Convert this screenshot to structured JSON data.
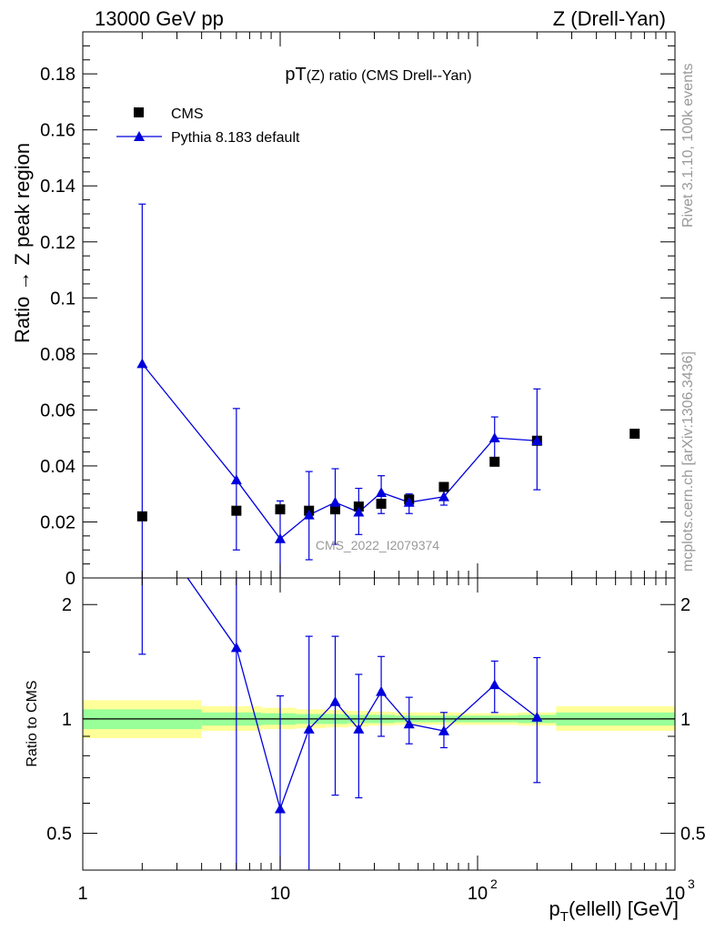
{
  "header": {
    "left": "13000 GeV pp",
    "right": "Z (Drell-Yan)"
  },
  "side_notes": {
    "rivet": "Rivet 3.1.10,  100k events",
    "mcplots": "mcplots.cern.ch [arXiv:1306.3436]"
  },
  "watermark": "CMS_2022_I2079374",
  "colors": {
    "data": "#000000",
    "mc": "#0000dd",
    "band_inner": "#99ff99",
    "band_outer": "#ffff99"
  },
  "chart_data": [
    {
      "type": "scatter",
      "title": "pT(Z) ratio (CMS Drell--Yan)",
      "title_main": "pT",
      "title_rest": "(Z) ratio (CMS Drell--Yan)",
      "xlabel": "p_T(ellell) [GeV]",
      "xlabel_main": "p",
      "xlabel_sub": "T",
      "xlabel_rest": "(ellell) [GeV]",
      "ylabel": "Ratio → Z peak region",
      "xscale": "log",
      "xlim": [
        1,
        1000
      ],
      "ylim": [
        0,
        0.195
      ],
      "yticks": [
        0,
        0.02,
        0.04,
        0.06,
        0.08,
        0.1,
        0.12,
        0.14,
        0.16,
        0.18
      ],
      "ytick_labels": [
        "0",
        "0.02",
        "0.04",
        "0.06",
        "0.08",
        "0.1",
        "0.12",
        "0.14",
        "0.16",
        "0.18"
      ],
      "legend_position": "top-left",
      "legend": [
        "CMS",
        "Pythia 8.183 default"
      ],
      "series": [
        {
          "name": "CMS",
          "marker": "square",
          "x": [
            2,
            6,
            10,
            14,
            19,
            25,
            32.5,
            45,
            67.5,
            122,
            200,
            625
          ],
          "y": [
            0.022,
            0.024,
            0.0245,
            0.024,
            0.0245,
            0.0255,
            0.0265,
            0.028,
            0.0325,
            0.0415,
            0.049,
            0.0515
          ]
        },
        {
          "name": "Pythia 8.183 default",
          "marker": "triangle",
          "x": [
            2,
            6,
            10,
            14,
            19,
            25,
            32.5,
            45,
            67.5,
            122,
            200
          ],
          "y": [
            0.0765,
            0.035,
            0.014,
            0.0225,
            0.027,
            0.0235,
            0.0305,
            0.027,
            0.029,
            0.05,
            0.049
          ],
          "err_low": [
            0.0765,
            0.025,
            0.014,
            0.016,
            0.015,
            0.008,
            0.0075,
            0.004,
            0.003,
            0.0075,
            0.0175
          ],
          "err_high": [
            0.057,
            0.0255,
            0.0135,
            0.0155,
            0.012,
            0.0085,
            0.006,
            0.003,
            0.003,
            0.0075,
            0.0185
          ]
        }
      ]
    },
    {
      "type": "line",
      "title": "",
      "xlabel": "p_T(ellell) [GeV]",
      "ylabel": "Ratio to CMS",
      "xscale": "log",
      "yscale": "log",
      "xlim": [
        1,
        1000
      ],
      "ylim": [
        0.4,
        2.35
      ],
      "yticks": [
        0.5,
        1,
        2
      ],
      "ytick_labels": [
        "0.5",
        "1",
        "2"
      ],
      "xtick_labels": [
        "1",
        "10",
        "10",
        "10"
      ],
      "xtick_exponents": [
        "",
        "",
        "2",
        "3"
      ],
      "reference_line": 1,
      "bands": [
        {
          "x_low": 1,
          "x_high": 4,
          "inner": [
            0.94,
            1.06
          ],
          "outer": [
            0.89,
            1.12
          ]
        },
        {
          "x_low": 4,
          "x_high": 8,
          "inner": [
            0.96,
            1.04
          ],
          "outer": [
            0.93,
            1.08
          ]
        },
        {
          "x_low": 8,
          "x_high": 12,
          "inner": [
            0.965,
            1.035
          ],
          "outer": [
            0.94,
            1.07
          ]
        },
        {
          "x_low": 12,
          "x_high": 17,
          "inner": [
            0.97,
            1.03
          ],
          "outer": [
            0.945,
            1.06
          ]
        },
        {
          "x_low": 17,
          "x_high": 22,
          "inner": [
            0.97,
            1.03
          ],
          "outer": [
            0.95,
            1.055
          ]
        },
        {
          "x_low": 22,
          "x_high": 28,
          "inner": [
            0.975,
            1.025
          ],
          "outer": [
            0.955,
            1.05
          ]
        },
        {
          "x_low": 28,
          "x_high": 38,
          "inner": [
            0.975,
            1.025
          ],
          "outer": [
            0.96,
            1.045
          ]
        },
        {
          "x_low": 38,
          "x_high": 55,
          "inner": [
            0.98,
            1.02
          ],
          "outer": [
            0.965,
            1.04
          ]
        },
        {
          "x_low": 55,
          "x_high": 85,
          "inner": [
            0.98,
            1.02
          ],
          "outer": [
            0.965,
            1.04
          ]
        },
        {
          "x_low": 85,
          "x_high": 160,
          "inner": [
            0.98,
            1.02
          ],
          "outer": [
            0.965,
            1.035
          ]
        },
        {
          "x_low": 160,
          "x_high": 250,
          "inner": [
            0.975,
            1.025
          ],
          "outer": [
            0.96,
            1.04
          ]
        },
        {
          "x_low": 250,
          "x_high": 1000,
          "inner": [
            0.96,
            1.04
          ],
          "outer": [
            0.93,
            1.08
          ]
        }
      ],
      "series": [
        {
          "name": "Pythia 8.183 default / CMS",
          "marker": "triangle",
          "x": [
            2,
            6,
            10,
            14,
            19,
            25,
            32.5,
            45,
            67.5,
            122,
            200
          ],
          "y": [
            3.48,
            1.54,
            0.58,
            0.94,
            1.11,
            0.94,
            1.18,
            0.97,
            0.93,
            1.23,
            1.01
          ],
          "err_low": [
            2.0,
            1.19,
            0.58,
            0.94,
            0.48,
            0.32,
            0.28,
            0.11,
            0.09,
            0.19,
            0.33
          ],
          "err_high": [
            2.0,
            1.06,
            0.57,
            0.71,
            0.54,
            0.37,
            0.28,
            0.17,
            0.11,
            0.19,
            0.44
          ]
        }
      ]
    }
  ]
}
